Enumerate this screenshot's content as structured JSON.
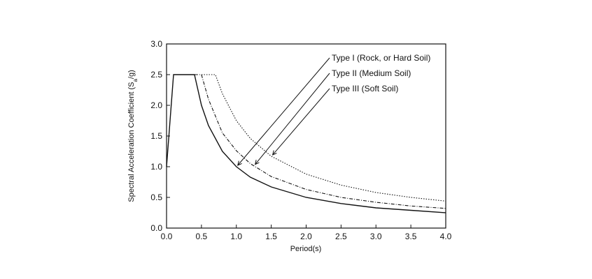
{
  "chart_data": {
    "type": "line",
    "xlabel": "Period(s)",
    "ylabel": "Spectral Acceleration Coefficient (S",
    "ylabel_sub": "a",
    "ylabel_end": "/g)",
    "xlim": [
      0,
      4.0
    ],
    "ylim": [
      0,
      3.0
    ],
    "x_ticks": [
      "0.0",
      "0.5",
      "1.0",
      "1.5",
      "2.0",
      "2.5",
      "3.0",
      "3.5",
      "4.0"
    ],
    "y_ticks": [
      "0.0",
      "0.5",
      "1.0",
      "1.5",
      "2.0",
      "2.5",
      "3.0"
    ],
    "grid": false,
    "series": [
      {
        "name": "Type I  (Rock, or Hard Soil)",
        "style": "solid",
        "x": [
          0.0,
          0.1,
          0.4,
          0.5,
          0.6,
          0.8,
          1.0,
          1.2,
          1.5,
          2.0,
          2.5,
          3.0,
          3.5,
          4.0
        ],
        "y": [
          1.0,
          2.5,
          2.5,
          2.0,
          1.67,
          1.25,
          1.0,
          0.83,
          0.67,
          0.5,
          0.4,
          0.33,
          0.29,
          0.25
        ]
      },
      {
        "name": "Type II (Medium Soil)",
        "style": "dashdot",
        "x": [
          0.4,
          0.5,
          0.6,
          0.8,
          1.0,
          1.2,
          1.5,
          2.0,
          2.5,
          3.0,
          3.5,
          4.0
        ],
        "y": [
          2.5,
          2.5,
          2.1,
          1.55,
          1.26,
          1.05,
          0.84,
          0.63,
          0.5,
          0.42,
          0.36,
          0.32
        ]
      },
      {
        "name": "Type III (Soft Soil)",
        "style": "dotted",
        "x": [
          0.5,
          0.7,
          0.8,
          1.0,
          1.2,
          1.5,
          2.0,
          2.5,
          3.0,
          3.5,
          4.0
        ],
        "y": [
          2.5,
          2.5,
          2.19,
          1.75,
          1.46,
          1.17,
          0.88,
          0.7,
          0.58,
          0.5,
          0.44
        ]
      }
    ],
    "annotations": [
      {
        "text": "Type I  (Rock, or Hard Soil)",
        "series": 0,
        "arrow_to_x": 1.0
      },
      {
        "text": "Type II (Medium Soil)",
        "series": 1,
        "arrow_to_x": 1.25
      },
      {
        "text": "Type III (Soft Soil)",
        "series": 2,
        "arrow_to_x": 1.5
      }
    ]
  }
}
